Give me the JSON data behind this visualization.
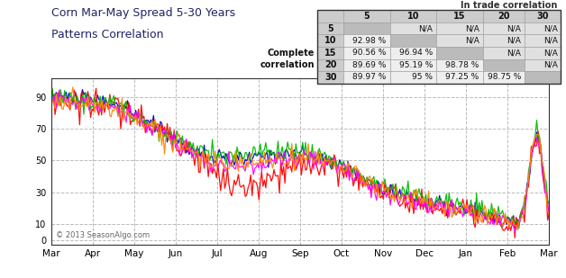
{
  "title_line1": "Corn Mar-May Spread 5-30 Years",
  "title_line2": "Patterns Correlation",
  "xlabel_ticks": [
    "Mar",
    "Apr",
    "May",
    "Jun",
    "Jul",
    "Aug",
    "Sep",
    "Oct",
    "Nov",
    "Dec",
    "Jan",
    "Feb",
    "Mar"
  ],
  "yticks": [
    0,
    10,
    30,
    50,
    70,
    90
  ],
  "ylim": [
    -3,
    102
  ],
  "line_colors": [
    "#0000cc",
    "#ff0000",
    "#00bb00",
    "#ff00ff",
    "#ff8800"
  ],
  "watermark": "© 2013 SeasonAlgo.com",
  "table_header": "In trade correlation",
  "table_col_headers": [
    "",
    "5",
    "10",
    "15",
    "20",
    "30"
  ],
  "table_row_headers": [
    "5",
    "10",
    "15",
    "20",
    "30"
  ],
  "table_data": [
    [
      "",
      "N/A",
      "N/A",
      "N/A",
      "N/A"
    ],
    [
      "92.98 %",
      "",
      "N/A",
      "N/A",
      "N/A"
    ],
    [
      "90.56 %",
      "96.94 %",
      "",
      "N/A",
      "N/A"
    ],
    [
      "89.69 %",
      "95.19 %",
      "98.78 %",
      "",
      "N/A"
    ],
    [
      "89.97 %",
      "95 %",
      "97.25 %",
      "98.75 %",
      ""
    ]
  ],
  "row_label_left": [
    "",
    "",
    "",
    "Complete",
    "correlation"
  ],
  "background_color": "#ffffff",
  "plot_bg_color": "#ffffff",
  "grid_color": "#bbbbbb",
  "n_points": 365,
  "figsize": [
    6.28,
    3.09
  ],
  "dpi": 100
}
